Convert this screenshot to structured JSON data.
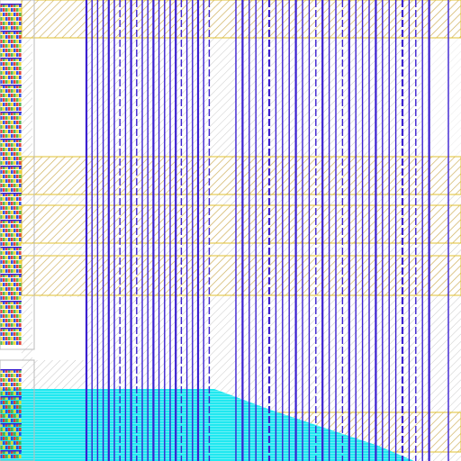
{
  "view": {
    "type": "layout-viewer",
    "background_color": "#ffffff"
  },
  "colors": {
    "metal_line": "#3a1fd0",
    "metal_line_light": "#7060e0",
    "hatch_gray": "#c9c9c9",
    "hatch_gold": "#d8b860",
    "band_outline": "#e0c030",
    "cyan_region": "#20e8f0",
    "cell_red": "#e03020",
    "cell_green": "#40b040",
    "cell_yellow": "#f0d020",
    "cell_blue": "#2040e0"
  },
  "layers": [
    {
      "name": "metal-vertical-lines",
      "color": "#3a1fd0"
    },
    {
      "name": "hatched-background",
      "color": "#c9c9c9"
    },
    {
      "name": "gold-hatched-bands",
      "color": "#d8b860"
    },
    {
      "name": "cyan-diffusion-region",
      "color": "#20e8f0"
    },
    {
      "name": "standard-cell-column",
      "color": "#e03020"
    }
  ]
}
